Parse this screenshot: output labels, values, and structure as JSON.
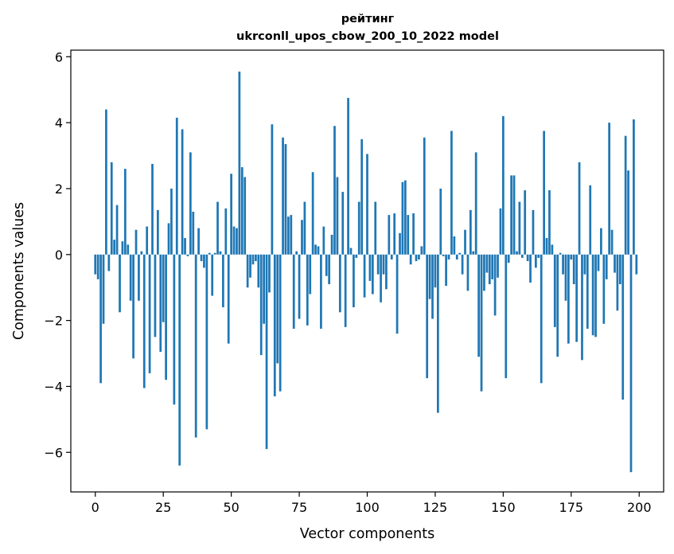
{
  "chart_data": {
    "type": "bar",
    "title": "рейтинг",
    "subtitle": "ukrconll_upos_cbow_200_10_2022 model",
    "xlabel": "Vector components",
    "ylabel": "Components values",
    "xlim": [
      -9,
      209
    ],
    "ylim": [
      -7.2,
      6.2
    ],
    "xticks": [
      0,
      25,
      50,
      75,
      100,
      125,
      150,
      175,
      200
    ],
    "yticks": [
      -6,
      -4,
      -2,
      0,
      2,
      4,
      6
    ],
    "ytick_labels": [
      "−6",
      "−4",
      "−2",
      "0",
      "2",
      "4",
      "6"
    ],
    "bar_color": "#1f77b4",
    "grid": false,
    "x": [
      0,
      1,
      2,
      3,
      4,
      5,
      6,
      7,
      8,
      9,
      10,
      11,
      12,
      13,
      14,
      15,
      16,
      17,
      18,
      19,
      20,
      21,
      22,
      23,
      24,
      25,
      26,
      27,
      28,
      29,
      30,
      31,
      32,
      33,
      34,
      35,
      36,
      37,
      38,
      39,
      40,
      41,
      42,
      43,
      44,
      45,
      46,
      47,
      48,
      49,
      50,
      51,
      52,
      53,
      54,
      55,
      56,
      57,
      58,
      59,
      60,
      61,
      62,
      63,
      64,
      65,
      66,
      67,
      68,
      69,
      70,
      71,
      72,
      73,
      74,
      75,
      76,
      77,
      78,
      79,
      80,
      81,
      82,
      83,
      84,
      85,
      86,
      87,
      88,
      89,
      90,
      91,
      92,
      93,
      94,
      95,
      96,
      97,
      98,
      99,
      100,
      101,
      102,
      103,
      104,
      105,
      106,
      107,
      108,
      109,
      110,
      111,
      112,
      113,
      114,
      115,
      116,
      117,
      118,
      119,
      120,
      121,
      122,
      123,
      124,
      125,
      126,
      127,
      128,
      129,
      130,
      131,
      132,
      133,
      134,
      135,
      136,
      137,
      138,
      139,
      140,
      141,
      142,
      143,
      144,
      145,
      146,
      147,
      148,
      149,
      150,
      151,
      152,
      153,
      154,
      155,
      156,
      157,
      158,
      159,
      160,
      161,
      162,
      163,
      164,
      165,
      166,
      167,
      168,
      169,
      170,
      171,
      172,
      173,
      174,
      175,
      176,
      177,
      178,
      179,
      180,
      181,
      182,
      183,
      184,
      185,
      186,
      187,
      188,
      189,
      190,
      191,
      192,
      193,
      194,
      195,
      196,
      197,
      198,
      199
    ],
    "values": [
      -0.6,
      -0.75,
      -3.9,
      -2.1,
      4.4,
      -0.5,
      2.8,
      0.45,
      1.5,
      -1.75,
      0.4,
      2.6,
      0.3,
      -1.4,
      -3.15,
      0.75,
      -1.4,
      0.1,
      -4.05,
      0.85,
      -3.6,
      2.75,
      -2.5,
      1.35,
      -2.95,
      -2.05,
      -3.8,
      0.95,
      2.0,
      -4.55,
      4.15,
      -6.4,
      3.8,
      0.5,
      -0.05,
      3.1,
      1.3,
      -5.55,
      0.8,
      -0.2,
      -0.4,
      -5.3,
      0.05,
      -1.25,
      0.05,
      1.6,
      0.1,
      -1.6,
      1.4,
      -2.7,
      2.45,
      0.85,
      0.8,
      5.55,
      2.65,
      2.35,
      -1.0,
      -0.7,
      -0.3,
      -0.2,
      -1.0,
      -3.05,
      -2.1,
      -5.9,
      -1.15,
      3.95,
      -4.3,
      -3.3,
      -4.15,
      3.55,
      3.35,
      1.15,
      1.2,
      -2.25,
      0.1,
      -1.95,
      1.05,
      1.6,
      -2.15,
      -1.2,
      2.5,
      0.3,
      0.25,
      -2.25,
      0.85,
      -0.65,
      -0.9,
      0.6,
      3.9,
      2.35,
      -1.75,
      1.9,
      -2.2,
      4.75,
      0.2,
      -1.6,
      -0.1,
      1.6,
      3.5,
      -1.3,
      3.05,
      -0.8,
      -1.2,
      1.6,
      -0.6,
      -1.45,
      -0.6,
      -1.05,
      1.2,
      -0.15,
      1.25,
      -2.4,
      0.65,
      2.2,
      2.25,
      1.2,
      -0.3,
      1.25,
      -0.2,
      -0.15,
      0.25,
      3.55,
      -3.75,
      -1.35,
      -1.95,
      -1.0,
      -4.8,
      2.0,
      -0.05,
      -0.95,
      -0.15,
      3.75,
      0.55,
      -0.15,
      0.05,
      -0.6,
      0.75,
      -1.1,
      1.35,
      0.1,
      3.1,
      -3.1,
      -4.15,
      -1.1,
      -0.55,
      -0.9,
      -0.75,
      -1.85,
      -0.7,
      1.4,
      4.2,
      -3.75,
      -0.25,
      2.4,
      2.4,
      0.1,
      1.6,
      -0.1,
      1.95,
      -0.2,
      -0.85,
      1.35,
      -0.4,
      -0.1,
      -3.9,
      3.75,
      0.5,
      1.95,
      0.3,
      -2.2,
      -3.1,
      0.05,
      -0.6,
      -1.4,
      -2.7,
      -0.15,
      -0.9,
      -2.65,
      2.8,
      -3.2,
      -0.6,
      -2.25,
      2.1,
      -2.45,
      -2.5,
      -0.5,
      0.8,
      -2.1,
      -0.75,
      4.0,
      0.75,
      -0.55,
      -1.7,
      -0.9,
      -4.4,
      3.6,
      2.55,
      -6.6,
      4.1,
      -0.6
    ]
  }
}
